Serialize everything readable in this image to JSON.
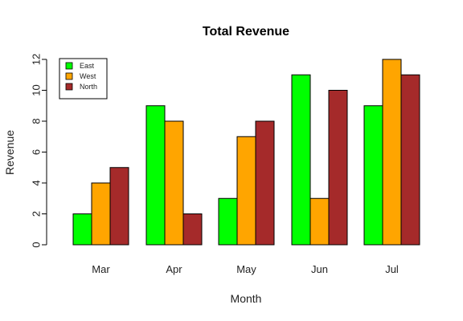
{
  "chart_data": {
    "type": "bar",
    "title": "Total Revenue",
    "xlabel": "Month",
    "ylabel": "Revenue",
    "categories": [
      "Mar",
      "Apr",
      "May",
      "Jun",
      "Jul"
    ],
    "series": [
      {
        "name": "East",
        "color": "#00ff00",
        "values": [
          2,
          9,
          3,
          11,
          9
        ]
      },
      {
        "name": "West",
        "color": "#ffa500",
        "values": [
          4,
          8,
          7,
          3,
          12
        ]
      },
      {
        "name": "North",
        "color": "#a52a2a",
        "values": [
          5,
          2,
          8,
          10,
          11
        ]
      }
    ],
    "ylim": [
      0,
      12
    ],
    "yticks": [
      "0",
      "2",
      "4",
      "6",
      "8",
      "10",
      "12"
    ],
    "legend_position": "top-left",
    "grid": false,
    "bar_border_color": "#000000"
  }
}
